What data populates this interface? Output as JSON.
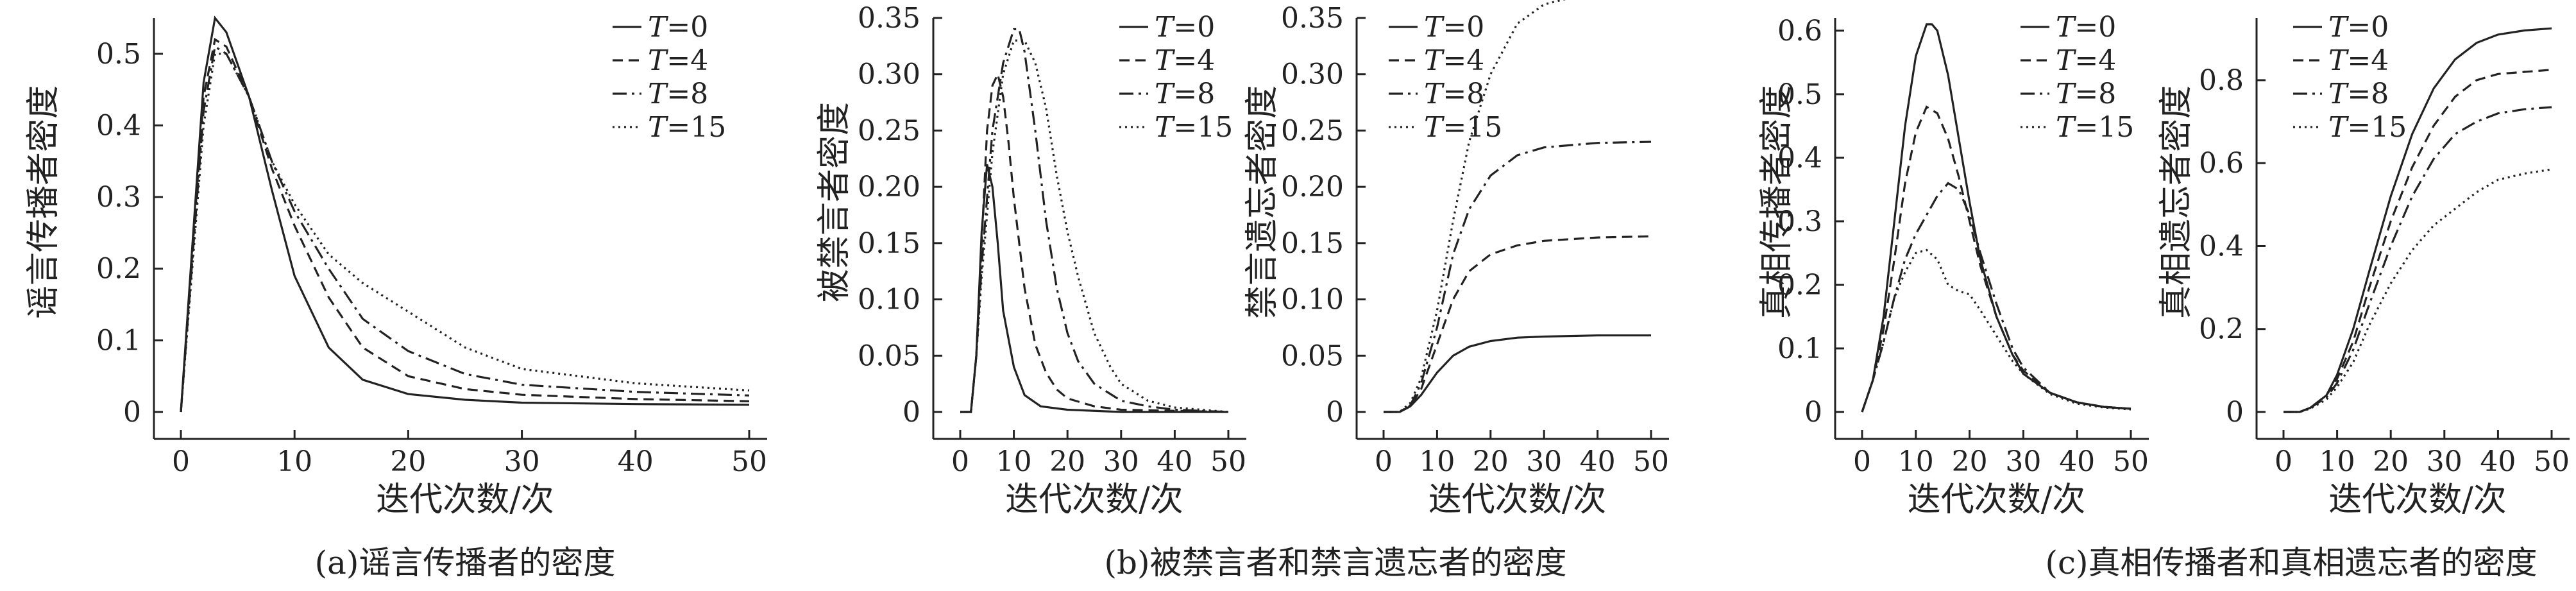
{
  "chart_data": [
    {
      "type": "line",
      "title": "",
      "xlabel": "迭代次数/次",
      "ylabel": "谣言传播者密度",
      "xlim": [
        0,
        50
      ],
      "ylim": [
        0,
        0.55
      ],
      "xticks": [
        0,
        10,
        20,
        30,
        40,
        50
      ],
      "xtick_labels": [
        "0",
        "10",
        "20",
        "30",
        "40",
        "50"
      ],
      "yticks": [
        0,
        0.1,
        0.2,
        0.3,
        0.4,
        0.5
      ],
      "ytick_labels": [
        "0",
        "0.1",
        "0.2",
        "0.3",
        "0.4",
        "0.5"
      ],
      "legend_position": "top-right",
      "caption": "(a)谣言传播者的密度",
      "series": [
        {
          "name": "T=0",
          "style": "solid",
          "x": [
            0,
            2,
            3,
            4,
            6,
            8,
            10,
            13,
            16,
            20,
            25,
            30,
            40,
            50
          ],
          "y": [
            0,
            0.46,
            0.55,
            0.53,
            0.44,
            0.31,
            0.19,
            0.09,
            0.045,
            0.025,
            0.017,
            0.013,
            0.011,
            0.01
          ]
        },
        {
          "name": "T=4",
          "style": "dashed",
          "x": [
            0,
            2,
            3,
            4,
            6,
            8,
            10,
            13,
            16,
            20,
            25,
            30,
            40,
            50
          ],
          "y": [
            0,
            0.44,
            0.52,
            0.51,
            0.44,
            0.34,
            0.26,
            0.16,
            0.09,
            0.05,
            0.032,
            0.024,
            0.018,
            0.015
          ]
        },
        {
          "name": "T=8",
          "style": "dashdot",
          "x": [
            0,
            2,
            3,
            4,
            6,
            8,
            10,
            13,
            16,
            20,
            25,
            30,
            40,
            50
          ],
          "y": [
            0,
            0.42,
            0.51,
            0.5,
            0.44,
            0.35,
            0.28,
            0.2,
            0.13,
            0.085,
            0.053,
            0.038,
            0.028,
            0.023
          ]
        },
        {
          "name": "T=15",
          "style": "dotted",
          "x": [
            0,
            2,
            3,
            4,
            6,
            8,
            10,
            13,
            16,
            20,
            22,
            25,
            30,
            40,
            50
          ],
          "y": [
            0,
            0.4,
            0.5,
            0.5,
            0.44,
            0.35,
            0.29,
            0.22,
            0.18,
            0.14,
            0.12,
            0.09,
            0.06,
            0.04,
            0.03
          ]
        }
      ]
    },
    {
      "type": "line",
      "title": "",
      "xlabel": "迭代次数/次",
      "ylabel": "被禁言者密度",
      "xlim": [
        0,
        50
      ],
      "ylim": [
        0,
        0.35
      ],
      "xticks": [
        0,
        10,
        20,
        30,
        40,
        50
      ],
      "xtick_labels": [
        "0",
        "10",
        "20",
        "30",
        "40",
        "50"
      ],
      "yticks": [
        0,
        0.05,
        0.1,
        0.15,
        0.2,
        0.25,
        0.3,
        0.35
      ],
      "ytick_labels": [
        "0",
        "0.05",
        "0.10",
        "0.15",
        "0.20",
        "0.25",
        "0.30",
        "0.35"
      ],
      "legend_position": "top-right",
      "caption": "(b)被禁言者和禁言遗忘者的密度",
      "series": [
        {
          "name": "T=0",
          "style": "solid",
          "x": [
            0,
            2,
            3,
            4,
            5,
            6,
            7,
            8,
            10,
            12,
            15,
            20,
            30,
            50
          ],
          "y": [
            0,
            0,
            0.05,
            0.16,
            0.22,
            0.2,
            0.15,
            0.09,
            0.04,
            0.015,
            0.005,
            0.002,
            0,
            0
          ]
        },
        {
          "name": "T=4",
          "style": "dashed",
          "x": [
            0,
            2,
            3,
            4,
            5,
            6,
            7,
            8,
            9,
            10,
            12,
            14,
            16,
            18,
            20,
            25,
            30,
            40,
            50
          ],
          "y": [
            0,
            0,
            0.05,
            0.15,
            0.25,
            0.29,
            0.3,
            0.28,
            0.24,
            0.19,
            0.11,
            0.06,
            0.035,
            0.02,
            0.012,
            0.005,
            0.002,
            0.001,
            0
          ]
        },
        {
          "name": "T=8",
          "style": "dashdot",
          "x": [
            0,
            2,
            3,
            4,
            6,
            8,
            10,
            11,
            12,
            14,
            16,
            18,
            20,
            22,
            25,
            30,
            35,
            40,
            50
          ],
          "y": [
            0,
            0,
            0.05,
            0.13,
            0.25,
            0.31,
            0.34,
            0.34,
            0.32,
            0.25,
            0.17,
            0.11,
            0.07,
            0.045,
            0.025,
            0.01,
            0.005,
            0.002,
            0
          ]
        },
        {
          "name": "T=15",
          "style": "dotted",
          "x": [
            0,
            2,
            3,
            4,
            6,
            8,
            10,
            12,
            14,
            16,
            18,
            20,
            22,
            25,
            28,
            30,
            35,
            40,
            50
          ],
          "y": [
            0,
            0,
            0.05,
            0.12,
            0.23,
            0.3,
            0.33,
            0.33,
            0.31,
            0.27,
            0.21,
            0.16,
            0.12,
            0.07,
            0.04,
            0.025,
            0.01,
            0.004,
            0
          ]
        }
      ]
    },
    {
      "type": "line",
      "title": "",
      "xlabel": "迭代次数/次",
      "ylabel": "禁言遗忘者密度",
      "xlim": [
        0,
        50
      ],
      "ylim": [
        0,
        0.35
      ],
      "xticks": [
        0,
        10,
        20,
        30,
        40,
        50
      ],
      "xtick_labels": [
        "0",
        "10",
        "20",
        "30",
        "40",
        "50"
      ],
      "yticks": [
        0,
        0.05,
        0.1,
        0.15,
        0.2,
        0.25,
        0.3,
        0.35
      ],
      "ytick_labels": [
        "0",
        "0.05",
        "0.10",
        "0.15",
        "0.20",
        "0.25",
        "0.30",
        "0.35"
      ],
      "legend_position": "top-left",
      "caption": "",
      "series": [
        {
          "name": "T=0",
          "style": "solid",
          "x": [
            0,
            3,
            5,
            7,
            10,
            13,
            16,
            20,
            25,
            30,
            40,
            50
          ],
          "y": [
            0,
            0,
            0.005,
            0.015,
            0.035,
            0.05,
            0.058,
            0.063,
            0.066,
            0.067,
            0.068,
            0.068
          ]
        },
        {
          "name": "T=4",
          "style": "dashed",
          "x": [
            0,
            3,
            5,
            7,
            10,
            13,
            16,
            20,
            25,
            30,
            40,
            50
          ],
          "y": [
            0,
            0,
            0.005,
            0.02,
            0.06,
            0.1,
            0.125,
            0.14,
            0.148,
            0.152,
            0.155,
            0.156
          ]
        },
        {
          "name": "T=8",
          "style": "dashdot",
          "x": [
            0,
            3,
            5,
            7,
            10,
            13,
            16,
            20,
            25,
            30,
            40,
            50
          ],
          "y": [
            0,
            0,
            0.006,
            0.025,
            0.075,
            0.14,
            0.18,
            0.21,
            0.228,
            0.235,
            0.239,
            0.24
          ]
        },
        {
          "name": "T=15",
          "style": "dotted",
          "x": [
            0,
            3,
            5,
            7,
            10,
            13,
            16,
            20,
            25,
            30,
            40,
            50
          ],
          "y": [
            0,
            0,
            0.008,
            0.03,
            0.09,
            0.17,
            0.24,
            0.3,
            0.345,
            0.362,
            0.374,
            0.376
          ]
        }
      ]
    },
    {
      "type": "line",
      "title": "",
      "xlabel": "迭代次数/次",
      "ylabel": "真相传播者密度",
      "xlim": [
        0,
        50
      ],
      "ylim": [
        0,
        0.62
      ],
      "xticks": [
        0,
        10,
        20,
        30,
        40,
        50
      ],
      "xtick_labels": [
        "0",
        "10",
        "20",
        "30",
        "40",
        "50"
      ],
      "yticks": [
        0,
        0.1,
        0.2,
        0.3,
        0.4,
        0.5,
        0.6
      ],
      "ytick_labels": [
        "0",
        "0.1",
        "0.2",
        "0.3",
        "0.4",
        "0.5",
        "0.6"
      ],
      "legend_position": "top-right",
      "caption": "(c)真相传播者和真相遗忘者的密度",
      "series": [
        {
          "name": "T=0",
          "style": "solid",
          "x": [
            0,
            2,
            4,
            6,
            8,
            10,
            12,
            13,
            14,
            16,
            18,
            20,
            22,
            25,
            28,
            30,
            35,
            40,
            45,
            50
          ],
          "y": [
            0,
            0.05,
            0.15,
            0.3,
            0.45,
            0.56,
            0.61,
            0.61,
            0.6,
            0.53,
            0.43,
            0.33,
            0.24,
            0.15,
            0.09,
            0.06,
            0.03,
            0.015,
            0.008,
            0.005
          ]
        },
        {
          "name": "T=4",
          "style": "dashed",
          "x": [
            0,
            2,
            4,
            6,
            8,
            10,
            12,
            14,
            16,
            18,
            20,
            22,
            25,
            28,
            30,
            35,
            40,
            45,
            50
          ],
          "y": [
            0,
            0.05,
            0.13,
            0.24,
            0.36,
            0.44,
            0.48,
            0.47,
            0.43,
            0.37,
            0.3,
            0.23,
            0.15,
            0.09,
            0.065,
            0.03,
            0.015,
            0.008,
            0.005
          ]
        },
        {
          "name": "T=8",
          "style": "dashdot",
          "x": [
            0,
            2,
            4,
            6,
            8,
            10,
            12,
            14,
            16,
            18,
            20,
            22,
            25,
            28,
            30,
            35,
            40,
            45,
            50
          ],
          "y": [
            0,
            0.05,
            0.11,
            0.18,
            0.24,
            0.28,
            0.31,
            0.34,
            0.36,
            0.35,
            0.31,
            0.25,
            0.17,
            0.1,
            0.07,
            0.03,
            0.015,
            0.008,
            0.005
          ]
        },
        {
          "name": "T=15",
          "style": "dotted",
          "x": [
            0,
            2,
            4,
            6,
            8,
            10,
            12,
            14,
            15,
            16,
            17,
            18,
            20,
            22,
            25,
            28,
            30,
            35,
            40,
            45,
            50
          ],
          "y": [
            0,
            0.05,
            0.11,
            0.18,
            0.22,
            0.25,
            0.255,
            0.24,
            0.22,
            0.2,
            0.195,
            0.19,
            0.185,
            0.16,
            0.12,
            0.08,
            0.06,
            0.028,
            0.013,
            0.007,
            0.004
          ]
        }
      ]
    },
    {
      "type": "line",
      "title": "",
      "xlabel": "迭代次数/次",
      "ylabel": "真相遗忘者密度",
      "xlim": [
        0,
        50
      ],
      "ylim": [
        0,
        0.95
      ],
      "xticks": [
        0,
        10,
        20,
        30,
        40,
        50
      ],
      "xtick_labels": [
        "0",
        "10",
        "20",
        "30",
        "40",
        "50"
      ],
      "yticks": [
        0,
        0.2,
        0.4,
        0.6,
        0.8
      ],
      "ytick_labels": [
        "0",
        "0.2",
        "0.4",
        "0.6",
        "0.8"
      ],
      "legend_position": "top-left",
      "caption": "",
      "series": [
        {
          "name": "T=0",
          "style": "solid",
          "x": [
            0,
            3,
            5,
            8,
            10,
            13,
            16,
            20,
            24,
            28,
            32,
            36,
            40,
            45,
            50
          ],
          "y": [
            0,
            0,
            0.01,
            0.04,
            0.09,
            0.2,
            0.34,
            0.52,
            0.67,
            0.78,
            0.85,
            0.89,
            0.91,
            0.92,
            0.925
          ]
        },
        {
          "name": "T=4",
          "style": "dashed",
          "x": [
            0,
            3,
            5,
            8,
            10,
            13,
            16,
            20,
            24,
            28,
            32,
            36,
            40,
            45,
            50
          ],
          "y": [
            0,
            0,
            0.01,
            0.04,
            0.08,
            0.17,
            0.3,
            0.46,
            0.59,
            0.69,
            0.76,
            0.8,
            0.815,
            0.82,
            0.825
          ]
        },
        {
          "name": "T=8",
          "style": "dashdot",
          "x": [
            0,
            3,
            5,
            8,
            10,
            13,
            16,
            20,
            24,
            28,
            32,
            36,
            40,
            45,
            50
          ],
          "y": [
            0,
            0,
            0.01,
            0.035,
            0.07,
            0.15,
            0.26,
            0.4,
            0.52,
            0.61,
            0.67,
            0.7,
            0.72,
            0.73,
            0.735
          ]
        },
        {
          "name": "T=15",
          "style": "dotted",
          "x": [
            0,
            3,
            5,
            8,
            10,
            13,
            16,
            20,
            24,
            28,
            32,
            36,
            40,
            45,
            50
          ],
          "y": [
            0,
            0,
            0.008,
            0.03,
            0.06,
            0.12,
            0.21,
            0.31,
            0.39,
            0.45,
            0.49,
            0.53,
            0.56,
            0.575,
            0.585
          ]
        }
      ]
    }
  ]
}
